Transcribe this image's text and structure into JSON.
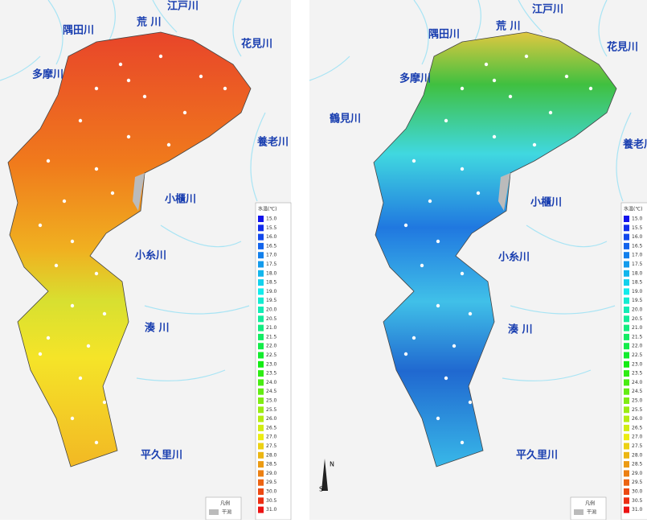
{
  "maps": [
    {
      "labels": [
        "江戸川",
        "隅田川",
        "荒 川",
        "多摩川",
        "花見川",
        "養老川",
        "小櫃川",
        "小糸川",
        "湊 川",
        "平久里川"
      ]
    },
    {
      "labels": [
        "江戸川",
        "隅田川",
        "荒 川",
        "多摩川",
        "花見川",
        "鶴見川",
        "養老川",
        "小櫃川",
        "小糸川",
        "湊 川",
        "平久里川"
      ]
    }
  ],
  "legend": {
    "title": "水温(℃)",
    "values": [
      "15.0",
      "15.5",
      "16.0",
      "16.5",
      "17.0",
      "17.5",
      "18.0",
      "18.5",
      "19.0",
      "19.5",
      "20.0",
      "20.5",
      "21.0",
      "21.5",
      "22.0",
      "22.5",
      "23.0",
      "23.5",
      "24.0",
      "24.5",
      "25.0",
      "25.5",
      "26.0",
      "26.5",
      "27.0",
      "27.5",
      "28.0",
      "28.5",
      "29.0",
      "29.5",
      "30.0",
      "30.5",
      "31.0"
    ]
  },
  "key": {
    "title": "凡例",
    "item": "干潟"
  },
  "compass": {
    "north": "N",
    "south": "S"
  }
}
